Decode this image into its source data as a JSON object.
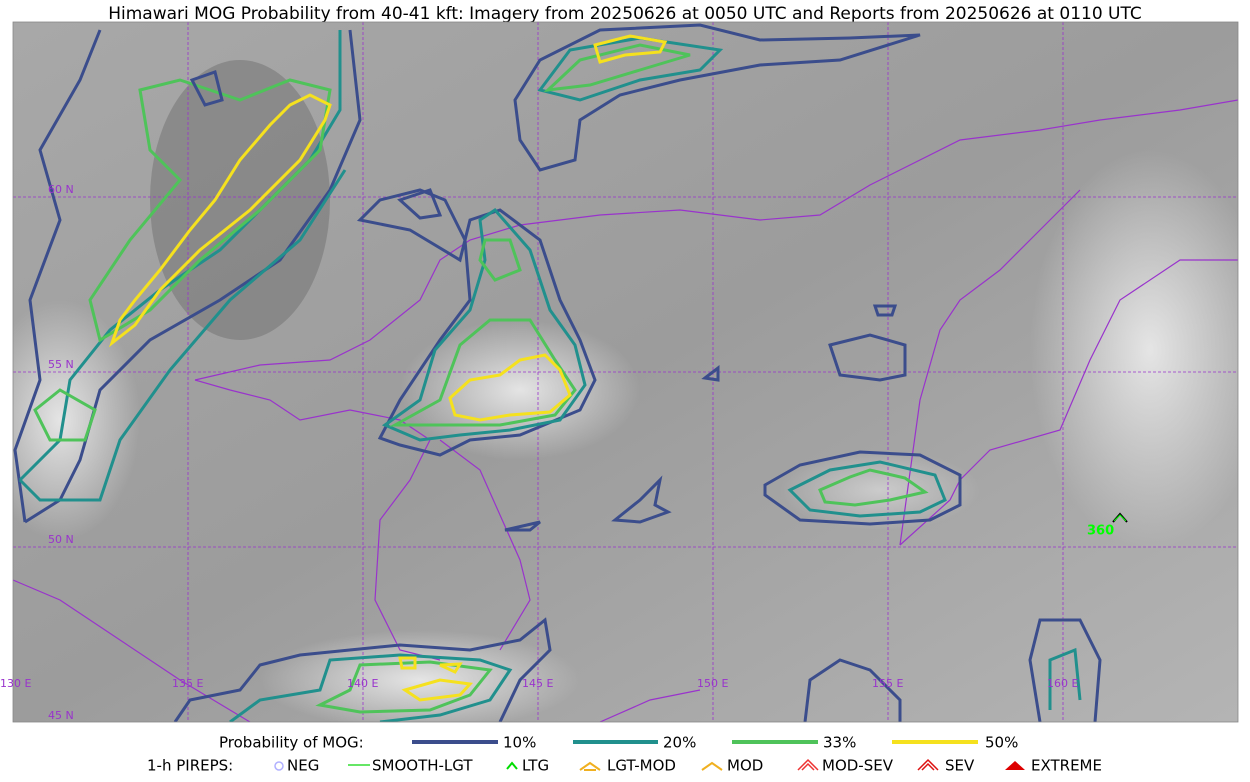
{
  "title": "Himawari MOG Probability from 40-41 kft: Imagery from 20250626 at 0050 UTC and Reports from 20250626 at 0110 UTC",
  "grid_labels": {
    "lat": [
      "60 N",
      "55 N",
      "50 N",
      "45 N"
    ],
    "lon": [
      "130 E",
      "135 E",
      "140 E",
      "145 E",
      "150 E",
      "155 E",
      "160 E"
    ]
  },
  "legend": {
    "probability_title": "Probability of MOG:",
    "probability_levels": [
      "10%",
      "20%",
      "33%",
      "50%"
    ],
    "pireps_title": "1-h PIREPS:",
    "pireps": [
      "NEG",
      "SMOOTH-LGT",
      "LTG",
      "LGT-MOD",
      "MOD",
      "MOD-SEV",
      "SEV",
      "EXTREME"
    ]
  },
  "reports": [
    {
      "label": "360"
    }
  ]
}
